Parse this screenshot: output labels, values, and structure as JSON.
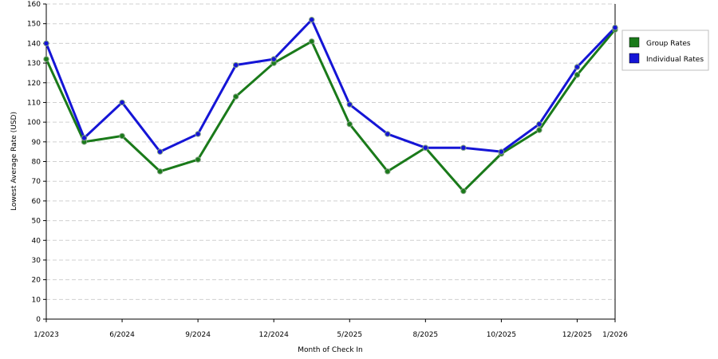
{
  "chart_data": {
    "type": "line",
    "title": "",
    "xlabel": "Month of Check In",
    "ylabel": "Lowest Average Rate (USD)",
    "ylim": [
      0,
      160
    ],
    "yticks": [
      0,
      10,
      20,
      30,
      40,
      50,
      60,
      70,
      80,
      90,
      100,
      110,
      120,
      130,
      140,
      150,
      160
    ],
    "grid": "horizontal dashed",
    "legend_position": "right",
    "x_tick_labels": [
      "1/2023",
      "6/2024",
      "9/2024",
      "12/2024",
      "5/2025",
      "8/2025",
      "10/2025",
      "12/2025",
      "1/2026"
    ],
    "x_tick_index": [
      0,
      2,
      4,
      6,
      8,
      10,
      12,
      14,
      15
    ],
    "series": [
      {
        "name": "Group Rates",
        "color": "#1a7a1a",
        "values": [
          132,
          90,
          93,
          75,
          81,
          113,
          130,
          141,
          99,
          75,
          87,
          65,
          84,
          96,
          124,
          147
        ]
      },
      {
        "name": "Individual Rates",
        "color": "#1515d6",
        "values": [
          140,
          92,
          110,
          85,
          94,
          129,
          132,
          152,
          109,
          94,
          87,
          87,
          85,
          99,
          128,
          148
        ]
      }
    ]
  }
}
